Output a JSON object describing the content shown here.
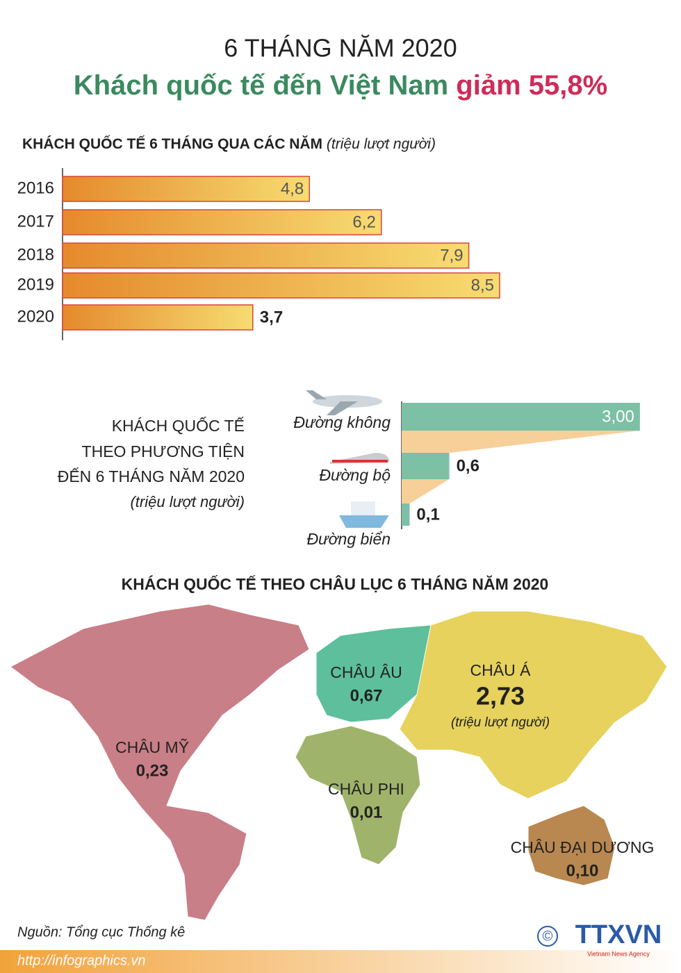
{
  "header": {
    "kicker": "6 THÁNG NĂM 2020",
    "headline": "Khách quốc tế đến Việt Nam",
    "headline_highlight": "giảm 55,8%"
  },
  "chart_data": [
    {
      "type": "bar",
      "title": "KHÁCH QUỐC TẾ 6 THÁNG QUA CÁC NĂM",
      "subtitle": "(triệu lượt người)",
      "categories": [
        "2016",
        "2017",
        "2018",
        "2019",
        "2020"
      ],
      "values": [
        4.8,
        6.2,
        7.9,
        8.5,
        3.7
      ],
      "value_labels": [
        "4,8",
        "6,2",
        "7,9",
        "8,5",
        "3,7"
      ],
      "color": "#e58a2c",
      "xlim": [
        0,
        12
      ]
    },
    {
      "type": "bar",
      "title_lines": [
        "KHÁCH QUỐC TẾ",
        "THEO PHƯƠNG TIỆN",
        "ĐẾN 6 THÁNG NĂM 2020"
      ],
      "subtitle": "(triệu lượt người)",
      "categories": [
        "Đường không",
        "Đường bộ",
        "Đường biển"
      ],
      "values": [
        3.0,
        0.6,
        0.1
      ],
      "value_labels": [
        "3,00",
        "0,6",
        "0,1"
      ],
      "color": "#7cc0a6",
      "xlim": [
        0,
        3.5
      ]
    },
    {
      "type": "map",
      "title": "KHÁCH QUỐC TẾ THEO CHÂU LỤC 6 THÁNG NĂM 2020",
      "unit": "(triệu lượt người)",
      "categories": [
        "CHÂU MỸ",
        "CHÂU ÂU",
        "CHÂU Á",
        "CHÂU PHI",
        "CHÂU ĐẠI DƯƠNG"
      ],
      "values": [
        0.23,
        0.67,
        2.73,
        0.01,
        0.1
      ],
      "value_labels": [
        "0,23",
        "0,67",
        "2,73",
        "0,01",
        "0,10"
      ],
      "colors": [
        "#c97f87",
        "#5dbf9c",
        "#e6d25c",
        "#9fb46a",
        "#b98850"
      ]
    }
  ],
  "footer": {
    "source": "Nguồn: Tổng cục Thống kê",
    "url": "http://infographics.vn",
    "copyright": "©",
    "logo": "TTXVN",
    "logo_sub": "Vietnam News Agency"
  }
}
